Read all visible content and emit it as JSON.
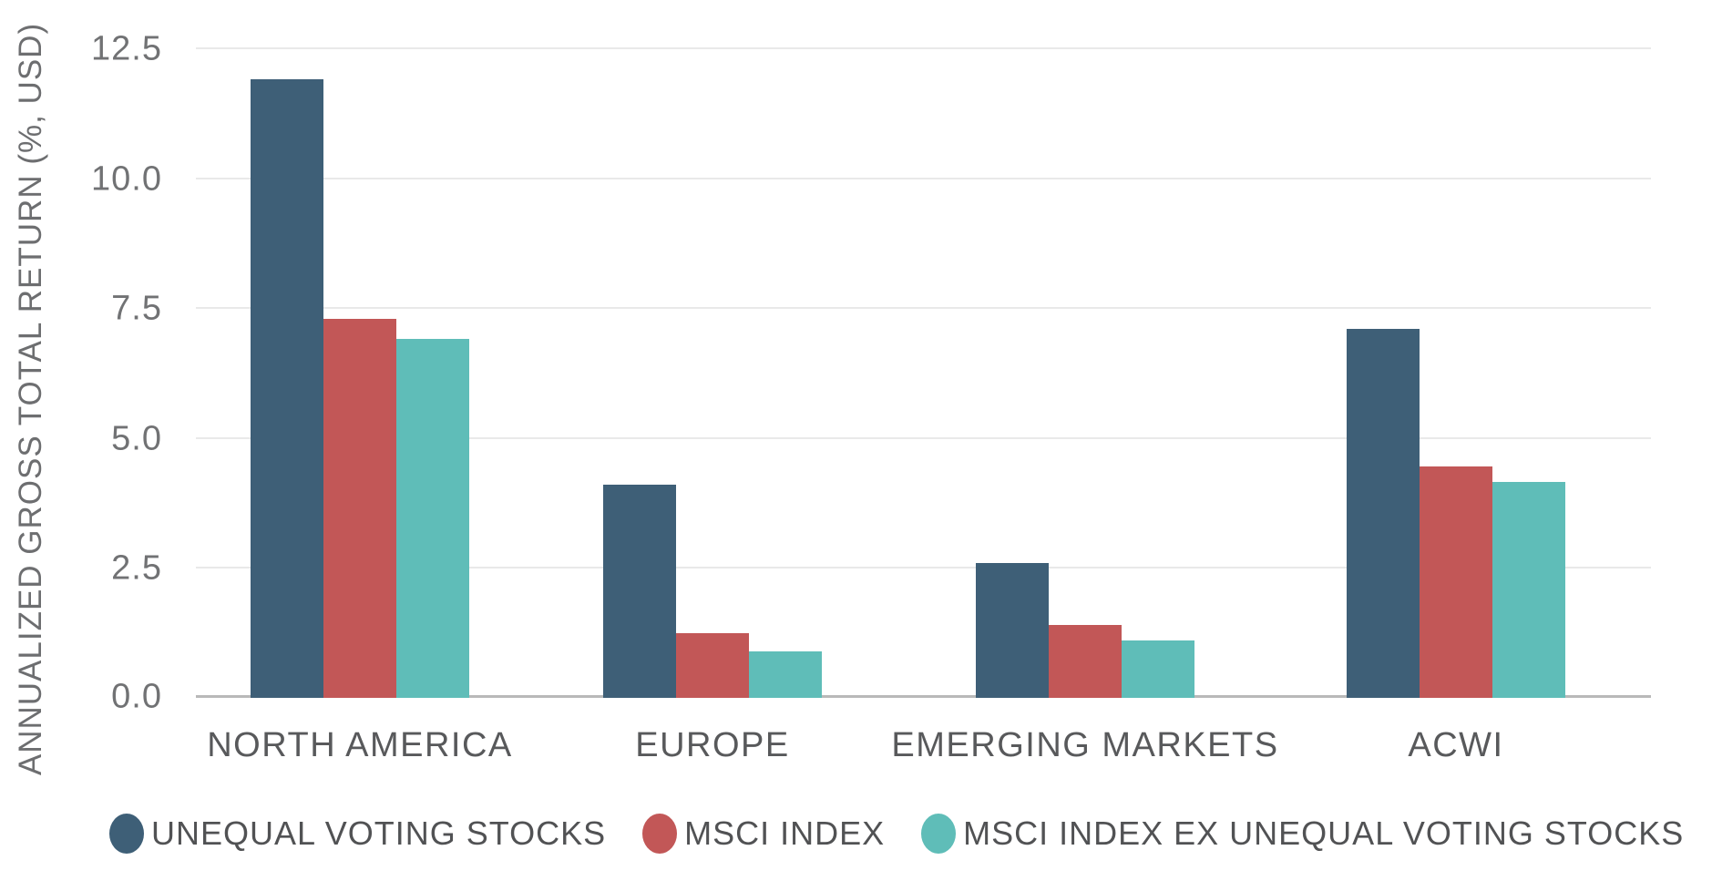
{
  "chart_data": {
    "type": "bar",
    "title": "",
    "xlabel": "",
    "ylabel": "ANNUALIZED GROSS TOTAL RETURN (%, USD)",
    "ylim": [
      0,
      12.5
    ],
    "yticks": [
      0.0,
      2.5,
      5.0,
      7.5,
      10.0,
      12.5
    ],
    "ytick_labels": [
      "0.0",
      "2.5",
      "5.0",
      "7.5",
      "10.0",
      "12.5"
    ],
    "grid": "horizontal",
    "legend_position": "bottom-left",
    "categories": [
      "NORTH AMERICA",
      "EUROPE",
      "EMERGING MARKETS",
      "ACWI"
    ],
    "series": [
      {
        "name": "UNEQUAL VOTING STOCKS",
        "color": "#3E5F77",
        "values": [
          11.9,
          4.1,
          2.6,
          7.1
        ]
      },
      {
        "name": "MSCI INDEX",
        "color": "#C25757",
        "values": [
          7.3,
          1.25,
          1.4,
          4.45
        ]
      },
      {
        "name": "MSCI INDEX EX UNEQUAL VOTING STOCKS",
        "color": "#5FBDB8",
        "values": [
          6.9,
          0.9,
          1.1,
          4.15
        ]
      }
    ]
  }
}
